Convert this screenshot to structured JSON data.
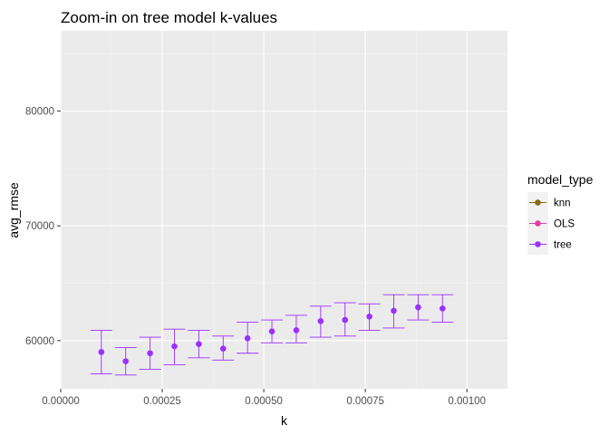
{
  "chart_data": {
    "type": "scatter",
    "title": "Zoom-in on tree model k-values",
    "xlabel": "k",
    "ylabel": "avg_rmse",
    "xlim": [
      0.0,
      0.0011
    ],
    "ylim": [
      55800,
      87000
    ],
    "x_ticks": [
      0.0,
      0.00025,
      0.0005,
      0.00075,
      0.001
    ],
    "x_tick_labels": [
      "0.00000",
      "0.00025",
      "0.00050",
      "0.00075",
      "0.00100"
    ],
    "y_ticks": [
      60000,
      70000,
      80000
    ],
    "y_tick_labels": [
      "60000",
      "70000",
      "80000"
    ],
    "grid": true,
    "legend": {
      "title": "model_type",
      "position": "right",
      "entries": [
        {
          "name": "knn",
          "color": "#8b6914"
        },
        {
          "name": "OLS",
          "color": "#e23fa8"
        },
        {
          "name": "tree",
          "color": "#9b30ff"
        }
      ]
    },
    "series": [
      {
        "name": "tree",
        "color": "#9b30ff",
        "points": [
          {
            "x": 0.0001,
            "y": 59000,
            "ymin": 57100,
            "ymax": 60900
          },
          {
            "x": 0.00016,
            "y": 58200,
            "ymin": 57000,
            "ymax": 59400
          },
          {
            "x": 0.00022,
            "y": 58900,
            "ymin": 57500,
            "ymax": 60300
          },
          {
            "x": 0.00028,
            "y": 59500,
            "ymin": 57900,
            "ymax": 61000
          },
          {
            "x": 0.00034,
            "y": 59700,
            "ymin": 58500,
            "ymax": 60900
          },
          {
            "x": 0.0004,
            "y": 59300,
            "ymin": 58300,
            "ymax": 60400
          },
          {
            "x": 0.00046,
            "y": 60200,
            "ymin": 58900,
            "ymax": 61600
          },
          {
            "x": 0.00052,
            "y": 60800,
            "ymin": 59800,
            "ymax": 61800
          },
          {
            "x": 0.00058,
            "y": 60900,
            "ymin": 59800,
            "ymax": 62200
          },
          {
            "x": 0.00064,
            "y": 61700,
            "ymin": 60300,
            "ymax": 63000
          },
          {
            "x": 0.0007,
            "y": 61800,
            "ymin": 60400,
            "ymax": 63300
          },
          {
            "x": 0.00076,
            "y": 62100,
            "ymin": 60900,
            "ymax": 63200
          },
          {
            "x": 0.00082,
            "y": 62600,
            "ymin": 61100,
            "ymax": 64000
          },
          {
            "x": 0.00088,
            "y": 62900,
            "ymin": 61800,
            "ymax": 64000
          },
          {
            "x": 0.00094,
            "y": 62800,
            "ymin": 61600,
            "ymax": 64000
          }
        ]
      }
    ]
  }
}
